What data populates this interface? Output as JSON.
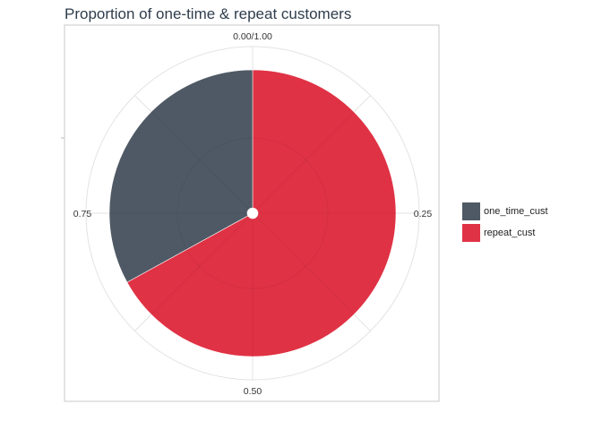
{
  "chart_data": {
    "type": "pie",
    "title": "Proportion of one-time & repeat customers",
    "categories": [
      "one_time_cust",
      "repeat_cust"
    ],
    "values": [
      0.33,
      0.67
    ],
    "colors": [
      "#4f5965",
      "#e03245"
    ],
    "theta_ticks": [
      "0.00/1.00",
      "0.25",
      "0.50",
      "0.75"
    ],
    "grid": true,
    "legend_position": "right"
  }
}
